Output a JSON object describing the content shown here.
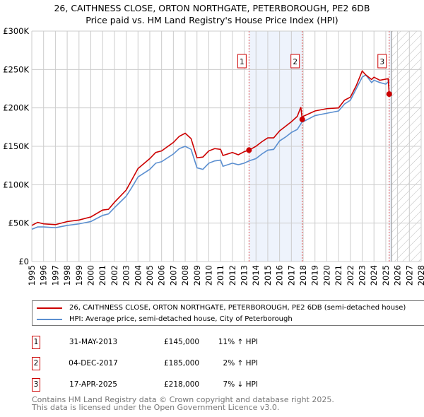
{
  "chart_data": {
    "type": "line",
    "title": "26, CAITHNESS CLOSE, ORTON NORTHGATE, PETERBOROUGH, PE2 6DB",
    "subtitle": "Price paid vs. HM Land Registry's House Price Index (HPI)",
    "xlim": [
      1995,
      2028
    ],
    "ylim": [
      0,
      300000
    ],
    "x_ticks": [
      "1995",
      "1996",
      "1997",
      "1998",
      "1999",
      "2000",
      "2001",
      "2002",
      "2003",
      "2004",
      "2005",
      "2006",
      "2007",
      "2008",
      "2009",
      "2010",
      "2011",
      "2012",
      "2013",
      "2014",
      "2015",
      "2016",
      "2017",
      "2018",
      "2019",
      "2020",
      "2021",
      "2022",
      "2023",
      "2024",
      "2025",
      "2026",
      "2027",
      "2028"
    ],
    "y_ticks": [
      {
        "v": 0,
        "label": "£0"
      },
      {
        "v": 50000,
        "label": "£50K"
      },
      {
        "v": 100000,
        "label": "£100K"
      },
      {
        "v": 150000,
        "label": "£150K"
      },
      {
        "v": 200000,
        "label": "£200K"
      },
      {
        "v": 250000,
        "label": "£250K"
      },
      {
        "v": 300000,
        "label": "£300K"
      }
    ],
    "grid": true,
    "series": [
      {
        "name": "26, CAITHNESS CLOSE, ORTON NORTHGATE, PETERBOROUGH, PE2 6DB (semi-detached house)",
        "color": "#cc0000",
        "x": [
          1995,
          1995.5,
          1996,
          1997,
          1998,
          1999,
          2000,
          2001,
          2001.5,
          2002,
          2003,
          2003.5,
          2004,
          2005,
          2005.5,
          2006,
          2007,
          2007.5,
          2008,
          2008.5,
          2009,
          2009.5,
          2010,
          2010.5,
          2011,
          2011.2,
          2012,
          2012.5,
          2013,
          2013.41,
          2014,
          2014.5,
          2015,
          2015.5,
          2016,
          2016.5,
          2017,
          2017.5,
          2017.8,
          2017.92,
          2018,
          2019,
          2020,
          2021,
          2021.5,
          2022,
          2022.5,
          2023,
          2023.3,
          2023.8,
          2024,
          2024.5,
          2025.2,
          2025.29,
          2025.4
        ],
        "y": [
          47000,
          51000,
          49000,
          48000,
          52000,
          54000,
          58000,
          67000,
          68000,
          77000,
          93000,
          107000,
          121000,
          134000,
          142000,
          144000,
          155000,
          163000,
          167000,
          160000,
          135000,
          136000,
          144000,
          147000,
          146000,
          138000,
          142000,
          139000,
          143000,
          145000,
          150000,
          156000,
          161000,
          161000,
          170000,
          176000,
          182000,
          189000,
          201000,
          185000,
          189000,
          196000,
          199000,
          200000,
          210000,
          214000,
          229000,
          248000,
          243000,
          237000,
          240000,
          236000,
          238000,
          218000,
          218000
        ]
      },
      {
        "name": "HPI: Average price, semi-detached house, City of Peterborough",
        "color": "#5b8fd0",
        "x": [
          1995,
          1995.5,
          1996,
          1997,
          1998,
          1999,
          2000,
          2001,
          2001.5,
          2002,
          2003,
          2003.5,
          2004,
          2005,
          2005.5,
          2006,
          2007,
          2007.5,
          2008,
          2008.5,
          2009,
          2009.5,
          2010,
          2010.5,
          2011,
          2011.2,
          2012,
          2012.5,
          2013,
          2013.41,
          2014,
          2014.5,
          2015,
          2015.5,
          2016,
          2016.5,
          2017,
          2017.5,
          2017.92,
          2018,
          2019,
          2020,
          2021,
          2021.5,
          2022,
          2022.5,
          2023,
          2023.3,
          2023.8,
          2024,
          2024.5,
          2025,
          2025.3
        ],
        "y": [
          42000,
          45000,
          45000,
          44000,
          47000,
          49000,
          52000,
          60000,
          62000,
          70000,
          85000,
          97000,
          110000,
          120000,
          128000,
          130000,
          140000,
          147000,
          150000,
          146000,
          122000,
          120000,
          128000,
          131000,
          132000,
          124000,
          128000,
          126000,
          128000,
          131000,
          134000,
          140000,
          145000,
          146000,
          157000,
          162000,
          168000,
          172000,
          182000,
          182000,
          190000,
          193000,
          196000,
          205000,
          210000,
          225000,
          240000,
          243000,
          233000,
          236000,
          233000,
          231000,
          235000
        ]
      }
    ],
    "sales": [
      {
        "id": "1",
        "x": 2013.41,
        "date": "31-MAY-2013",
        "price": 145000,
        "price_label": "£145,000",
        "hpi": "11% ↑ HPI"
      },
      {
        "id": "2",
        "x": 2017.92,
        "date": "04-DEC-2017",
        "price": 185000,
        "price_label": "£185,000",
        "hpi": "2% ↑ HPI"
      },
      {
        "id": "3",
        "x": 2025.29,
        "date": "17-APR-2025",
        "price": 218000,
        "price_label": "£218,000",
        "hpi": "7% ↓ HPI"
      }
    ],
    "shaded_range": [
      2013.41,
      2017.92
    ],
    "forecast_hatched_from": 2025.5
  },
  "legend": {
    "property": "26, CAITHNESS CLOSE, ORTON NORTHGATE, PETERBOROUGH, PE2 6DB (semi-detached house)",
    "hpi": "HPI: Average price, semi-detached house, City of Peterborough"
  },
  "footer": {
    "line1": "Contains HM Land Registry data © Crown copyright and database right 2025.",
    "line2": "This data is licensed under the Open Government Licence v3.0."
  }
}
